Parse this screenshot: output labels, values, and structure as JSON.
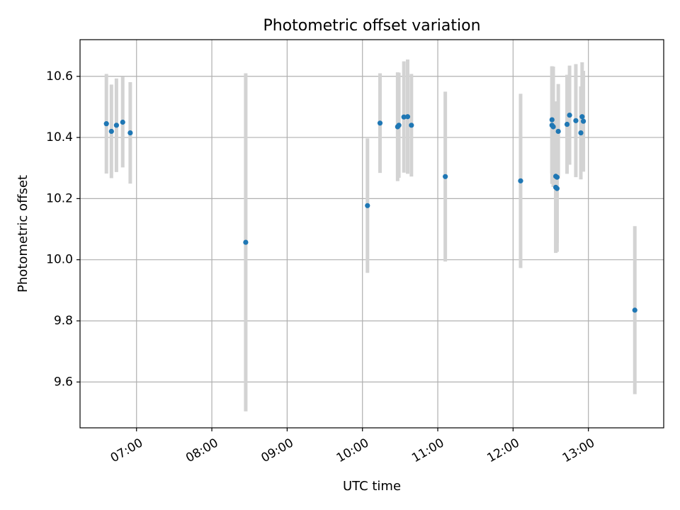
{
  "chart_data": {
    "type": "scatter",
    "title": "Photometric offset variation",
    "xlabel": "UTC time",
    "ylabel": "Photometric offset",
    "x_axis_type": "time",
    "xlim": [
      "06:15",
      "14:00"
    ],
    "ylim": [
      9.45,
      10.72
    ],
    "x_ticks": [
      "07:00",
      "08:00",
      "09:00",
      "10:00",
      "11:00",
      "12:00",
      "13:00"
    ],
    "y_ticks": [
      9.6,
      9.8,
      10.0,
      10.2,
      10.4,
      10.6
    ],
    "y_tick_labels": [
      "9.6",
      "9.8",
      "10.0",
      "10.2",
      "10.4",
      "10.6"
    ],
    "grid": true,
    "colors": {
      "points": "#1f77b4",
      "error_bars": "#d3d3d3",
      "grid": "#b0b0b0",
      "axes": "#000000"
    },
    "series": [
      {
        "x": [
          "06:36",
          "06:40",
          "06:44",
          "06:49",
          "06:55",
          "08:27",
          "10:04",
          "10:14",
          "10:28",
          "10:29",
          "10:33",
          "10:36",
          "10:39",
          "11:06",
          "12:06",
          "12:31",
          "12:31",
          "12:32",
          "12:34",
          "12:34",
          "12:35",
          "12:35",
          "12:36",
          "12:43",
          "12:45",
          "12:50",
          "12:54",
          "12:55",
          "12:56",
          "13:37"
        ],
        "y": [
          10.445,
          10.42,
          10.44,
          10.45,
          10.415,
          10.057,
          10.177,
          10.447,
          10.435,
          10.44,
          10.467,
          10.468,
          10.44,
          10.272,
          10.258,
          10.458,
          10.44,
          10.435,
          10.237,
          10.273,
          10.233,
          10.27,
          10.42,
          10.443,
          10.473,
          10.455,
          10.415,
          10.468,
          10.453,
          9.835
        ],
        "yerr": [
          0.163,
          0.153,
          0.153,
          0.148,
          0.166,
          0.553,
          0.22,
          0.163,
          0.178,
          0.172,
          0.182,
          0.187,
          0.168,
          0.278,
          0.285,
          0.175,
          0.192,
          0.197,
          0.215,
          0.245,
          0.207,
          0.215,
          0.155,
          0.162,
          0.162,
          0.185,
          0.152,
          0.178,
          0.165,
          0.275
        ]
      }
    ]
  }
}
